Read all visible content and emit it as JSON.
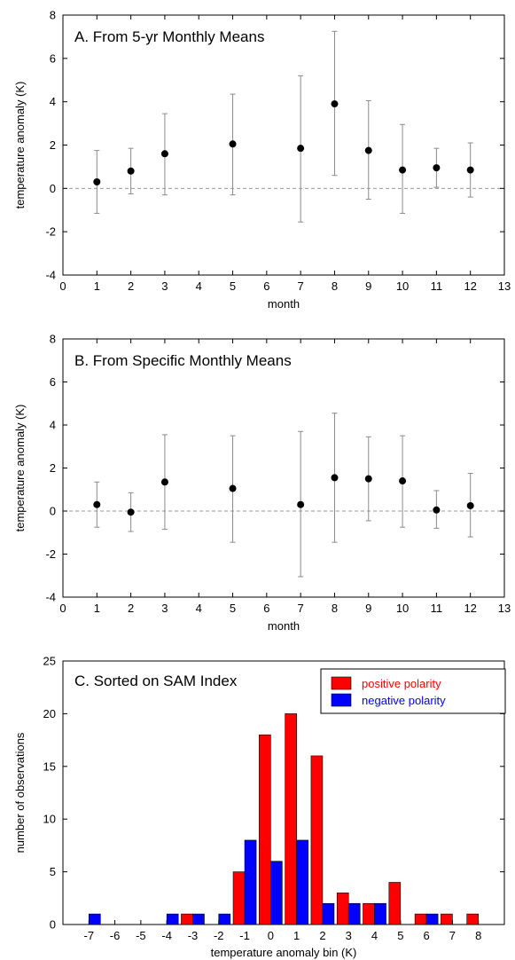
{
  "chart_data": [
    {
      "type": "scatter",
      "title": "A. From 5-yr Monthly Means",
      "xlabel": "month",
      "ylabel": "temperature anomaly (K)",
      "xlim": [
        0,
        13
      ],
      "ylim": [
        -4,
        8
      ],
      "xticks": [
        "0",
        "1",
        "2",
        "3",
        "4",
        "5",
        "6",
        "7",
        "8",
        "9",
        "10",
        "11",
        "12",
        "13"
      ],
      "yticks": [
        "-4",
        "-2",
        "0",
        "2",
        "4",
        "6",
        "8"
      ],
      "zero_line": "dashed",
      "x": [
        1,
        2,
        3,
        5,
        7,
        8,
        9,
        10,
        11,
        12
      ],
      "y": [
        0.3,
        0.8,
        1.6,
        2.05,
        1.85,
        3.9,
        1.75,
        0.85,
        0.95,
        0.85
      ],
      "y_low": [
        -1.15,
        -0.25,
        -0.3,
        -0.3,
        -1.55,
        0.6,
        -0.5,
        -1.15,
        0.05,
        -0.4
      ],
      "y_high": [
        1.75,
        1.85,
        3.45,
        4.35,
        5.2,
        7.25,
        4.05,
        2.95,
        1.85,
        2.1
      ]
    },
    {
      "type": "scatter",
      "title": "B. From Specific Monthly Means",
      "xlabel": "month",
      "ylabel": "temperature anomaly (K)",
      "xlim": [
        0,
        13
      ],
      "ylim": [
        -4,
        8
      ],
      "xticks": [
        "0",
        "1",
        "2",
        "3",
        "4",
        "5",
        "6",
        "7",
        "8",
        "9",
        "10",
        "11",
        "12",
        "13"
      ],
      "yticks": [
        "-4",
        "-2",
        "0",
        "2",
        "4",
        "6",
        "8"
      ],
      "zero_line": "dashed",
      "x": [
        1,
        2,
        3,
        5,
        7,
        8,
        9,
        10,
        11,
        12
      ],
      "y": [
        0.3,
        -0.05,
        1.35,
        1.05,
        0.3,
        1.55,
        1.5,
        1.4,
        0.05,
        0.25
      ],
      "y_low": [
        -0.75,
        -0.95,
        -0.85,
        -1.45,
        -3.05,
        -1.45,
        -0.45,
        -0.75,
        -0.8,
        -1.2
      ],
      "y_high": [
        1.35,
        0.85,
        3.55,
        3.5,
        3.7,
        4.55,
        3.45,
        3.5,
        0.95,
        1.75
      ]
    },
    {
      "type": "bar",
      "title": "C. Sorted on SAM Index",
      "xlabel": "temperature anomaly bin (K)",
      "ylabel": "number of observations",
      "ylim": [
        0,
        25
      ],
      "yticks": [
        "0",
        "5",
        "10",
        "15",
        "20",
        "25"
      ],
      "categories": [
        "-7",
        "-6",
        "-5",
        "-4",
        "-3",
        "-2",
        "-1",
        "0",
        "1",
        "2",
        "3",
        "4",
        "5",
        "6",
        "7",
        "8"
      ],
      "legend_position": "top-right",
      "series": [
        {
          "name": "positive polarity",
          "color": "#ff0000",
          "values": [
            0,
            0,
            0,
            0,
            1,
            0,
            5,
            18,
            20,
            16,
            3,
            2,
            4,
            1,
            1,
            1
          ]
        },
        {
          "name": "negative polarity",
          "color": "#0000ff",
          "values": [
            1,
            0,
            0,
            1,
            1,
            1,
            8,
            6,
            8,
            2,
            2,
            2,
            0,
            1,
            0,
            0
          ]
        }
      ]
    }
  ]
}
